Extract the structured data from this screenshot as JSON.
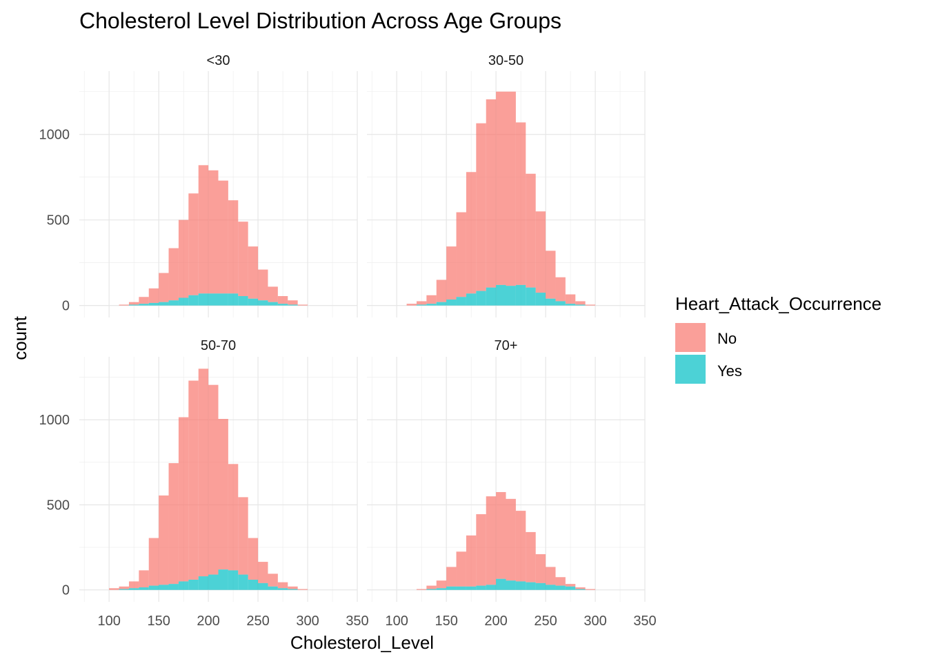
{
  "chart_data": {
    "type": "histogram",
    "title": "Cholesterol Level Distribution Across Age Groups",
    "xlabel": "Cholesterol_Level",
    "ylabel": "count",
    "grid": true,
    "stacked": true,
    "bin_width": 10,
    "xlim": [
      70,
      350
    ],
    "xticks": [
      100,
      150,
      200,
      250,
      300,
      350
    ],
    "yticks": [
      0,
      500,
      1000
    ],
    "ylim": [
      -70,
      1370
    ],
    "legend": {
      "title": "Heart_Attack_Occurrence",
      "position": "right",
      "entries": [
        {
          "label": "No",
          "color": "#F8766D"
        },
        {
          "label": "Yes",
          "color": "#00BFC4"
        }
      ]
    },
    "colors": {
      "No": "#F8766D",
      "Yes": "#00BFC4",
      "opacity": 0.7
    },
    "facets": [
      {
        "label": "<30",
        "bins": [
          100,
          110,
          120,
          130,
          140,
          150,
          160,
          170,
          180,
          190,
          200,
          210,
          220,
          230,
          240,
          250,
          260,
          270,
          280,
          290
        ],
        "total": [
          0,
          5,
          20,
          50,
          100,
          190,
          335,
          500,
          655,
          820,
          790,
          730,
          615,
          490,
          345,
          210,
          110,
          55,
          30,
          5
        ],
        "yes": [
          0,
          0,
          5,
          10,
          15,
          20,
          30,
          45,
          60,
          70,
          70,
          70,
          70,
          55,
          40,
          30,
          20,
          10,
          5,
          0
        ]
      },
      {
        "label": "30-50",
        "bins": [
          100,
          110,
          120,
          130,
          140,
          150,
          160,
          170,
          180,
          190,
          200,
          210,
          220,
          230,
          240,
          250,
          260,
          270,
          280,
          290
        ],
        "total": [
          0,
          10,
          25,
          60,
          150,
          345,
          545,
          780,
          1065,
          1205,
          1250,
          1250,
          1070,
          770,
          550,
          320,
          165,
          65,
          25,
          5
        ],
        "yes": [
          0,
          0,
          5,
          10,
          20,
          35,
          50,
          70,
          85,
          105,
          120,
          115,
          120,
          105,
          75,
          40,
          25,
          10,
          5,
          0
        ]
      },
      {
        "label": "50-70",
        "bins": [
          90,
          100,
          110,
          120,
          130,
          140,
          150,
          160,
          170,
          180,
          190,
          200,
          210,
          220,
          230,
          240,
          250,
          260,
          270,
          280,
          290
        ],
        "total": [
          0,
          10,
          20,
          50,
          115,
          305,
          555,
          745,
          1015,
          1230,
          1300,
          1205,
          1005,
          740,
          545,
          305,
          165,
          95,
          45,
          20,
          5
        ],
        "yes": [
          0,
          0,
          5,
          10,
          15,
          25,
          30,
          35,
          50,
          60,
          80,
          90,
          120,
          115,
          90,
          60,
          40,
          20,
          10,
          5,
          0
        ]
      },
      {
        "label": "70+",
        "bins": [
          110,
          120,
          130,
          140,
          150,
          160,
          170,
          180,
          190,
          200,
          210,
          220,
          230,
          240,
          250,
          260,
          270,
          280,
          290
        ],
        "total": [
          0,
          5,
          25,
          55,
          135,
          225,
          320,
          445,
          550,
          575,
          535,
          465,
          340,
          210,
          135,
          75,
          35,
          15,
          5
        ],
        "yes": [
          0,
          0,
          5,
          10,
          20,
          20,
          20,
          25,
          30,
          65,
          55,
          50,
          45,
          40,
          30,
          25,
          20,
          5,
          0
        ]
      }
    ]
  }
}
